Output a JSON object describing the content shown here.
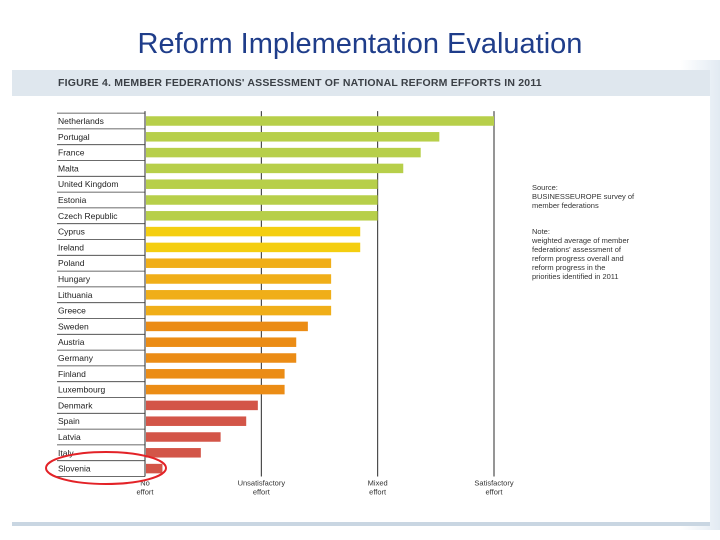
{
  "slide_title": "Reform Implementation Evaluation",
  "chart_data": {
    "type": "bar",
    "orientation": "horizontal",
    "title": "FIGURE 4. MEMBER FEDERATIONS' ASSESSMENT OF NATIONAL REFORM EFFORTS IN 2011",
    "categories": [
      "Netherlands",
      "Portugal",
      "France",
      "Malta",
      "United Kingdom",
      "Estonia",
      "Czech Republic",
      "Cyprus",
      "Ireland",
      "Poland",
      "Hungary",
      "Lithuania",
      "Greece",
      "Sweden",
      "Austria",
      "Germany",
      "Finland",
      "Luxembourg",
      "Denmark",
      "Spain",
      "Latvia",
      "Italy",
      "Slovenia"
    ],
    "values": [
      3.0,
      2.53,
      2.37,
      2.22,
      2.0,
      2.0,
      2.0,
      1.85,
      1.85,
      1.6,
      1.6,
      1.6,
      1.6,
      1.4,
      1.3,
      1.3,
      1.2,
      1.2,
      0.97,
      0.87,
      0.65,
      0.48,
      0.15
    ],
    "xlim": [
      0,
      3
    ],
    "x_tick_values": [
      0,
      1,
      2,
      3
    ],
    "x_ticks": [
      "No effort",
      "Unsatisfactory effort",
      "Mixed effort",
      "Satisfactory effort"
    ],
    "color_groups": [
      {
        "color": "#b7cf4a",
        "count": 7
      },
      {
        "color": "#f4ce10",
        "count": 2
      },
      {
        "color": "#f0ae18",
        "count": 4
      },
      {
        "color": "#eb8c15",
        "count": 5
      },
      {
        "color": "#d35548",
        "count": 5
      }
    ],
    "source_label": "Source:",
    "source_text": "BUSINESSEUROPE survey of member federations",
    "note_label": "Note:",
    "note_text": "weighted average of member federations' assessment of reform progress overall and reform progress in the priorities identified in 2011",
    "highlighted": "Slovenia"
  }
}
